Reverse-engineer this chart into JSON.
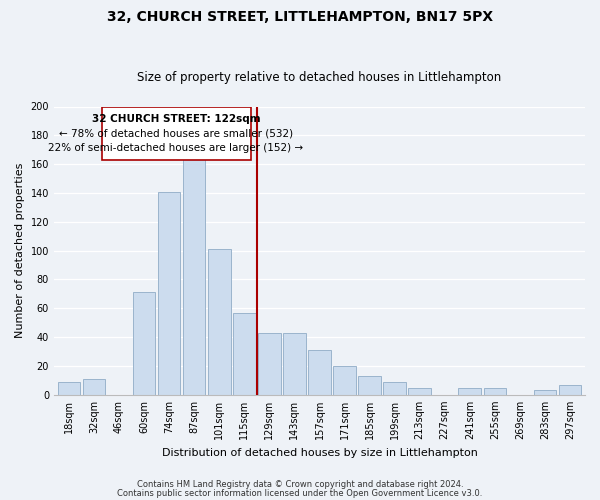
{
  "title": "32, CHURCH STREET, LITTLEHAMPTON, BN17 5PX",
  "subtitle": "Size of property relative to detached houses in Littlehampton",
  "xlabel": "Distribution of detached houses by size in Littlehampton",
  "ylabel": "Number of detached properties",
  "footnote1": "Contains HM Land Registry data © Crown copyright and database right 2024.",
  "footnote2": "Contains public sector information licensed under the Open Government Licence v3.0.",
  "bar_labels": [
    "18sqm",
    "32sqm",
    "46sqm",
    "60sqm",
    "74sqm",
    "87sqm",
    "101sqm",
    "115sqm",
    "129sqm",
    "143sqm",
    "157sqm",
    "171sqm",
    "185sqm",
    "199sqm",
    "213sqm",
    "227sqm",
    "241sqm",
    "255sqm",
    "269sqm",
    "283sqm",
    "297sqm"
  ],
  "bar_values": [
    9,
    11,
    0,
    71,
    141,
    166,
    101,
    57,
    43,
    43,
    31,
    20,
    13,
    9,
    5,
    0,
    5,
    5,
    0,
    3,
    7
  ],
  "bar_color": "#ccdcee",
  "bar_edge_color": "#9ab4cc",
  "ref_line_color": "#aa0000",
  "annotation_title": "32 CHURCH STREET: 122sqm",
  "annotation_line1": "← 78% of detached houses are smaller (532)",
  "annotation_line2": "22% of semi-detached houses are larger (152) →",
  "annotation_box_facecolor": "#ffffff",
  "annotation_box_edgecolor": "#aa0000",
  "ylim": [
    0,
    200
  ],
  "yticks": [
    0,
    20,
    40,
    60,
    80,
    100,
    120,
    140,
    160,
    180,
    200
  ],
  "background_color": "#eef2f7",
  "grid_color": "#ffffff",
  "title_fontsize": 10,
  "subtitle_fontsize": 8.5,
  "axis_label_fontsize": 8,
  "tick_fontsize": 7,
  "footnote_fontsize": 6
}
